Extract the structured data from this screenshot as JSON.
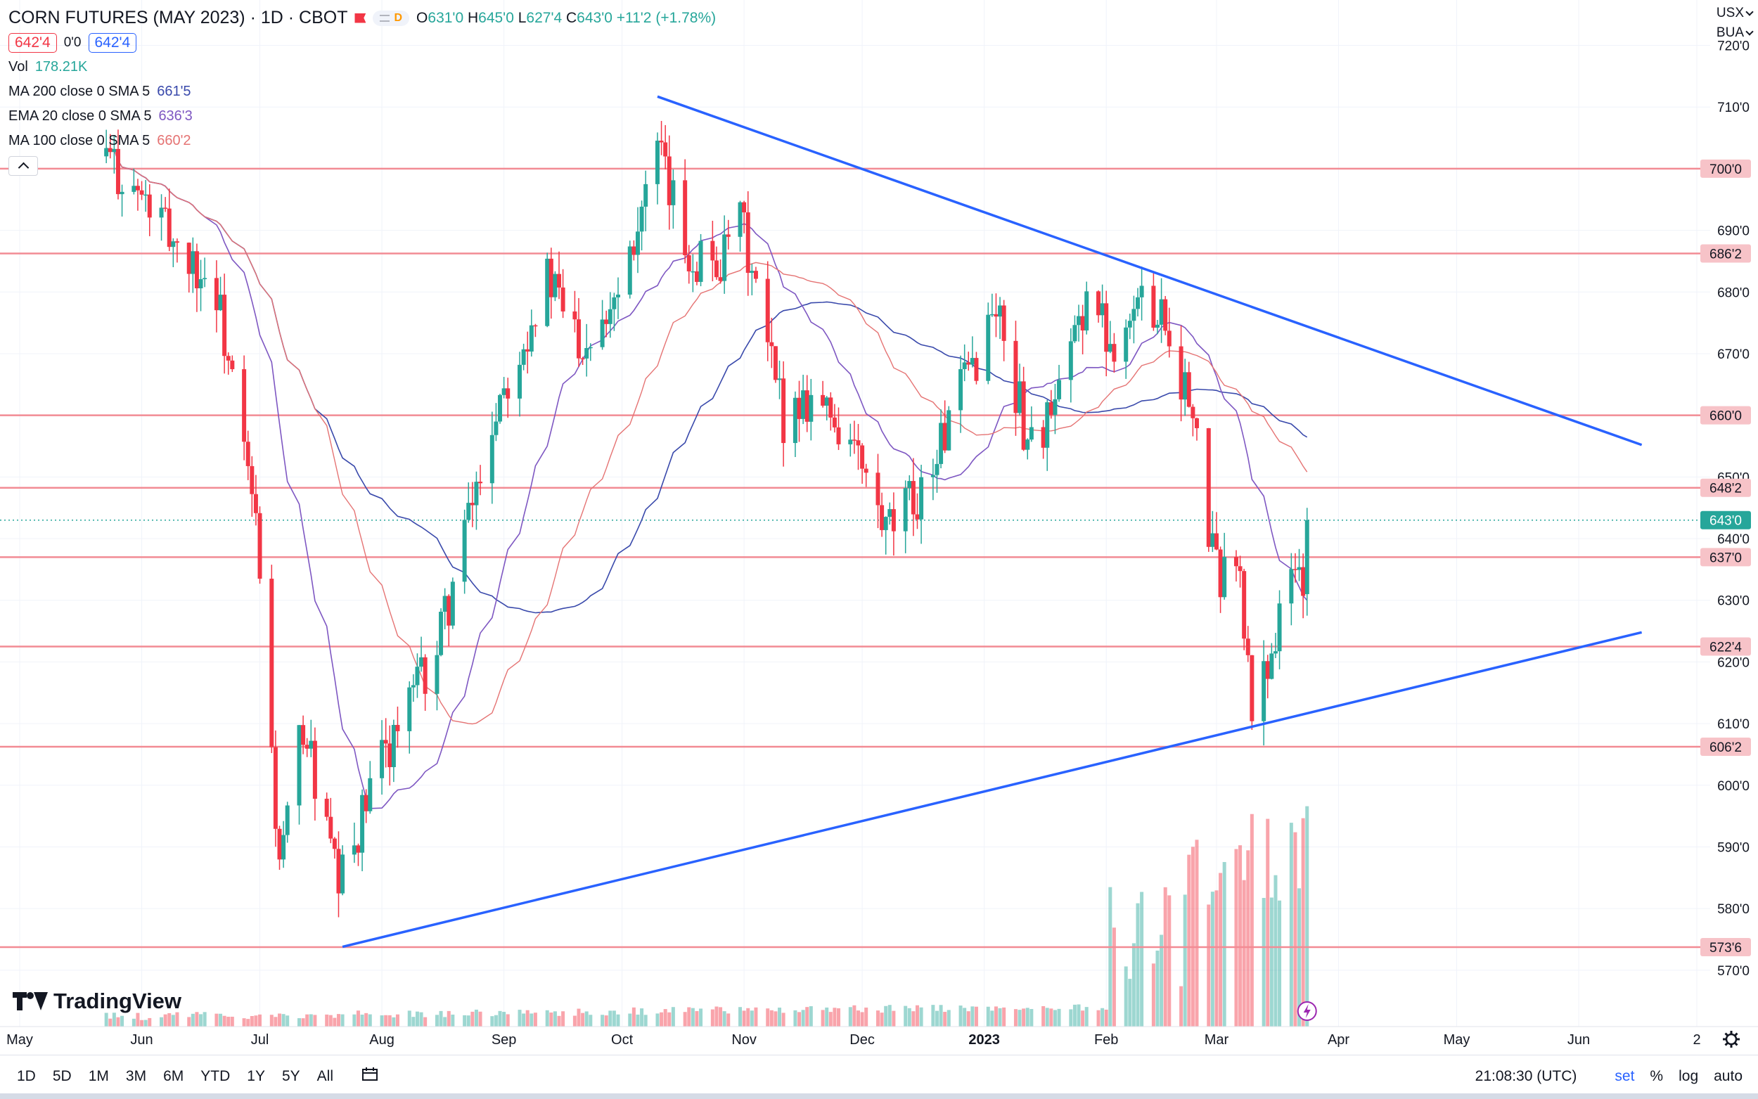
{
  "header": {
    "title": "CORN FUTURES (MAY 2023) · 1D · CBOT",
    "pill_letter": "D",
    "ohlc": {
      "o_label": "O",
      "o": "631'0",
      "h_label": "H",
      "h": "645'0",
      "l_label": "L",
      "l": "627'4",
      "c_label": "C",
      "c": "643'0",
      "change": "+11'2 (+1.78%)"
    },
    "bid": "642'4",
    "spread": "0'0",
    "ask": "642'4"
  },
  "indicators": [
    {
      "name": "Vol",
      "value": "178.21K",
      "color": "#26a69a"
    },
    {
      "name": "MA 200 close 0 SMA 5",
      "value": "661'5",
      "color": "#3949ab"
    },
    {
      "name": "EMA 20 close 0 SMA 5",
      "value": "636'3",
      "color": "#7e57c2"
    },
    {
      "name": "MA 100 close 0 SMA 5",
      "value": "660'2",
      "color": "#e57373"
    }
  ],
  "top_right": {
    "currency": "USX",
    "unit": "BUA"
  },
  "colors": {
    "up": "#26a69a",
    "down": "#f23645",
    "hline": "#f28b94",
    "trend": "#2962ff",
    "grid": "#f0f3fa"
  },
  "chart_data": {
    "type": "candlestick",
    "ylim": [
      562,
      722
    ],
    "y_ticks": [
      "720'0",
      "710'0",
      "700'0",
      "690'0",
      "680'0",
      "670'0",
      "660'0",
      "650'0",
      "640'0",
      "630'0",
      "620'0",
      "610'0",
      "600'0",
      "590'0",
      "580'0",
      "570'0"
    ],
    "y_tick_values": [
      720,
      710,
      700,
      690,
      680,
      670,
      660,
      650,
      640,
      630,
      620,
      610,
      600,
      590,
      580,
      570
    ],
    "x_labels": [
      "May",
      "Jun",
      "Jul",
      "Aug",
      "Sep",
      "Oct",
      "Nov",
      "Dec",
      "2023",
      "Feb",
      "Mar",
      "Apr",
      "May",
      "Jun",
      "2"
    ],
    "x_label_dates": [
      "2022-05-01",
      "2022-06-01",
      "2022-07-01",
      "2022-08-01",
      "2022-09-01",
      "2022-10-01",
      "2022-11-01",
      "2022-12-01",
      "2023-01-01",
      "2023-02-01",
      "2023-03-01",
      "2023-04-01",
      "2023-05-01",
      "2023-06-01",
      "2023-07-01"
    ],
    "horizontal_levels": [
      {
        "label": "700'0",
        "value": 700
      },
      {
        "label": "686'2",
        "value": 686.25
      },
      {
        "label": "660'0",
        "value": 660
      },
      {
        "label": "648'2",
        "value": 648.25
      },
      {
        "label": "637'0",
        "value": 637
      },
      {
        "label": "622'4",
        "value": 622.5
      },
      {
        "label": "606'2",
        "value": 606.25
      },
      {
        "label": "573'6",
        "value": 573.75
      }
    ],
    "last_price": {
      "label": "643'0",
      "value": 643
    },
    "trendlines": [
      {
        "name": "upper",
        "from": {
          "date": "2022-10-10",
          "value": 711.7
        },
        "to": {
          "date": "2023-06-17",
          "value": 655.2
        }
      },
      {
        "name": "lower",
        "from": {
          "date": "2022-07-22",
          "value": 573.8
        },
        "to": {
          "date": "2023-06-17",
          "value": 624.8
        }
      }
    ],
    "anchors": [
      {
        "date": "2022-05-01",
        "value": null
      },
      {
        "date": "2022-05-23",
        "value": 702,
        "range": [
          698,
          690
        ]
      },
      {
        "date": "2022-06-20",
        "value": 680,
        "range": [
          700,
          665
        ]
      },
      {
        "date": "2022-06-30",
        "value": 642,
        "range": [
          660,
          638
        ]
      },
      {
        "date": "2022-07-06",
        "value": 586,
        "range": [
          616,
          578
        ]
      },
      {
        "date": "2022-07-12",
        "value": 610,
        "range": [
          636,
          595
        ]
      },
      {
        "date": "2022-07-21",
        "value": 583,
        "range": [
          600,
          573.75
        ]
      },
      {
        "date": "2022-08-02",
        "value": 606,
        "range": [
          616,
          600
        ]
      },
      {
        "date": "2022-08-15",
        "value": 622,
        "range": [
          628,
          614
        ]
      },
      {
        "date": "2022-08-31",
        "value": 664,
        "range": [
          672,
          652
        ]
      },
      {
        "date": "2022-09-12",
        "value": 682,
        "range": [
          688,
          672
        ]
      },
      {
        "date": "2022-09-21",
        "value": 672,
        "range": [
          680,
          664
        ]
      },
      {
        "date": "2022-09-29",
        "value": 680,
        "range": [
          686,
          676
        ]
      },
      {
        "date": "2022-10-10",
        "value": 702,
        "range": [
          711.7,
          692
        ]
      },
      {
        "date": "2022-10-18",
        "value": 686,
        "range": [
          694,
          682
        ]
      },
      {
        "date": "2022-10-27",
        "value": 685,
        "range": [
          690,
          680
        ]
      },
      {
        "date": "2022-10-31",
        "value": 692,
        "range": [
          702,
          688
        ]
      },
      {
        "date": "2022-11-07",
        "value": 670,
        "range": [
          676,
          664
        ]
      },
      {
        "date": "2022-11-11",
        "value": 660,
        "range": [
          666,
          654
        ]
      },
      {
        "date": "2022-11-18",
        "value": 664,
        "range": [
          668,
          658
        ]
      },
      {
        "date": "2022-11-28",
        "value": 656,
        "range": [
          668,
          652
        ]
      },
      {
        "date": "2022-12-07",
        "value": 640,
        "range": [
          644,
          636
        ]
      },
      {
        "date": "2022-12-16",
        "value": 648,
        "range": [
          652,
          644
        ]
      },
      {
        "date": "2022-12-27",
        "value": 665,
        "range": [
          670,
          660
        ]
      },
      {
        "date": "2023-01-04",
        "value": 678,
        "range": [
          682,
          664
        ]
      },
      {
        "date": "2023-01-12",
        "value": 656,
        "range": [
          660,
          650
        ]
      },
      {
        "date": "2023-01-19",
        "value": 660,
        "range": [
          664,
          656
        ]
      },
      {
        "date": "2023-01-27",
        "value": 680,
        "range": [
          686,
          674
        ]
      },
      {
        "date": "2023-02-02",
        "value": 672,
        "range": [
          684,
          668
        ]
      },
      {
        "date": "2023-02-09",
        "value": 678,
        "range": [
          684,
          672
        ]
      },
      {
        "date": "2023-02-15",
        "value": 678,
        "range": [
          684,
          674
        ]
      },
      {
        "date": "2023-02-22",
        "value": 662,
        "range": [
          678,
          658
        ]
      },
      {
        "date": "2023-03-01",
        "value": 634,
        "range": [
          640,
          622
        ]
      },
      {
        "date": "2023-03-06",
        "value": 638,
        "range": [
          640,
          632
        ]
      },
      {
        "date": "2023-03-10",
        "value": 612,
        "range": [
          628,
          608
        ]
      },
      {
        "date": "2023-03-14",
        "value": 620,
        "range": [
          624,
          610
        ]
      },
      {
        "date": "2023-03-21",
        "value": 636,
        "range": [
          640,
          628
        ]
      },
      {
        "date": "2023-03-23",
        "value": 631,
        "range": [
          636,
          627.5
        ]
      },
      {
        "date": "2023-03-24",
        "value": 643,
        "range": [
          645,
          627.5
        ]
      }
    ],
    "ma_note_colors": {
      "ma200": "#3949ab",
      "ema20": "#7e57c2",
      "ma100": "#e57373"
    }
  },
  "toolbar": {
    "ranges": [
      "1D",
      "5D",
      "1M",
      "3M",
      "6M",
      "YTD",
      "1Y",
      "5Y",
      "All"
    ],
    "time": "21:08:30 (UTC)",
    "set": "set",
    "percent": "%",
    "log": "log",
    "auto": "auto"
  },
  "branding": {
    "logo_text": "TradingView"
  }
}
